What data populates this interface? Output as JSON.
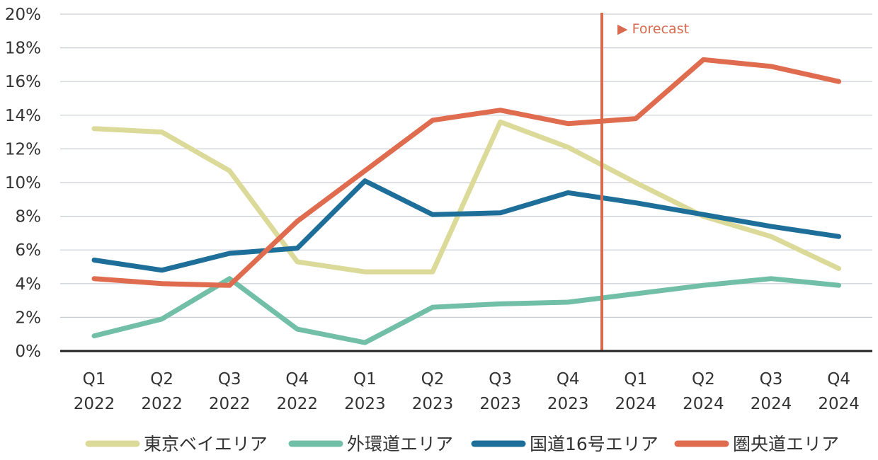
{
  "chart_data": {
    "type": "line",
    "categories": [
      [
        "Q1",
        "2022"
      ],
      [
        "Q2",
        "2022"
      ],
      [
        "Q3",
        "2022"
      ],
      [
        "Q4",
        "2022"
      ],
      [
        "Q1",
        "2023"
      ],
      [
        "Q2",
        "2023"
      ],
      [
        "Q3",
        "2023"
      ],
      [
        "Q4",
        "2023"
      ],
      [
        "Q1",
        "2024"
      ],
      [
        "Q2",
        "2024"
      ],
      [
        "Q3",
        "2024"
      ],
      [
        "Q4",
        "2024"
      ]
    ],
    "y_ticks": [
      "0%",
      "2%",
      "4%",
      "6%",
      "8%",
      "10%",
      "12%",
      "14%",
      "16%",
      "18%",
      "20%"
    ],
    "ylim": [
      0,
      20
    ],
    "grid": true,
    "series": [
      {
        "name": "東京ベイエリア",
        "color": "#dcda99",
        "values": [
          13.2,
          13.0,
          10.7,
          5.3,
          4.7,
          4.7,
          13.6,
          12.1,
          10.0,
          8.0,
          6.8,
          4.9
        ]
      },
      {
        "name": "外環道エリア",
        "color": "#72bfa8",
        "values": [
          0.9,
          1.9,
          4.3,
          1.3,
          0.5,
          2.6,
          2.8,
          2.9,
          3.4,
          3.9,
          4.3,
          3.9
        ]
      },
      {
        "name": "国道16号エリア",
        "color": "#1d6f99",
        "values": [
          5.4,
          4.8,
          5.8,
          6.1,
          10.1,
          8.1,
          8.2,
          9.4,
          8.8,
          8.1,
          7.4,
          6.8
        ]
      },
      {
        "name": "圏央道エリア",
        "color": "#e06c4f",
        "values": [
          4.3,
          4.0,
          3.9,
          7.7,
          10.7,
          13.7,
          14.3,
          13.5,
          13.8,
          17.3,
          16.9,
          16.0
        ]
      }
    ],
    "forecast": {
      "label": "▶ Forecast",
      "after_category_index": 7,
      "color": "#d86a4f"
    },
    "legend_position": "bottom"
  }
}
